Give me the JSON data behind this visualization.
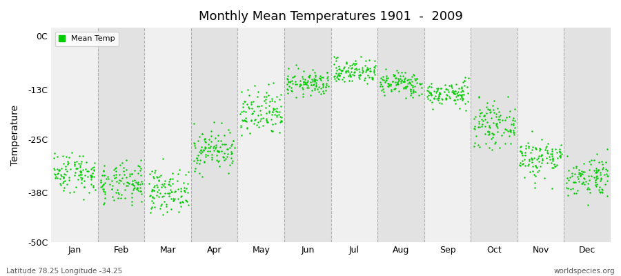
{
  "title": "Monthly Mean Temperatures 1901  -  2009",
  "ylabel": "Temperature",
  "ylim": [
    -50,
    2
  ],
  "yticks": [
    0,
    -13,
    -25,
    -38,
    -50
  ],
  "ytick_labels": [
    "0C",
    "-13C",
    "-25C",
    "-38C",
    "-50C"
  ],
  "months": [
    "Jan",
    "Feb",
    "Mar",
    "Apr",
    "May",
    "Jun",
    "Jul",
    "Aug",
    "Sep",
    "Oct",
    "Nov",
    "Dec"
  ],
  "month_means": [
    -33.0,
    -36.0,
    -37.5,
    -27.5,
    -19.0,
    -11.5,
    -8.5,
    -11.5,
    -14.0,
    -21.5,
    -29.5,
    -34.0
  ],
  "month_stds": [
    2.5,
    2.5,
    2.5,
    2.5,
    3.0,
    1.5,
    1.5,
    1.5,
    1.5,
    2.5,
    2.5,
    2.5
  ],
  "month_min_clamps": [
    -41,
    -43,
    -45,
    -35,
    -26,
    -15,
    -12,
    -15,
    -18,
    -30,
    -37,
    -41
  ],
  "month_max_clamps": [
    -26,
    -29,
    -29,
    -20,
    -11,
    -7,
    -5,
    -7,
    -10,
    -14,
    -23,
    -27
  ],
  "n_years": 109,
  "dot_color": "#00cc00",
  "dot_size": 3,
  "plot_bg_light": "#f0f0f0",
  "plot_bg_dark": "#e2e2e2",
  "outer_background": "#ffffff",
  "grid_color": "#888888",
  "legend_label": "Mean Temp",
  "footer_left": "Latitude 78.25 Longitude -34.25",
  "footer_right": "worldspecies.org",
  "seed": 42
}
